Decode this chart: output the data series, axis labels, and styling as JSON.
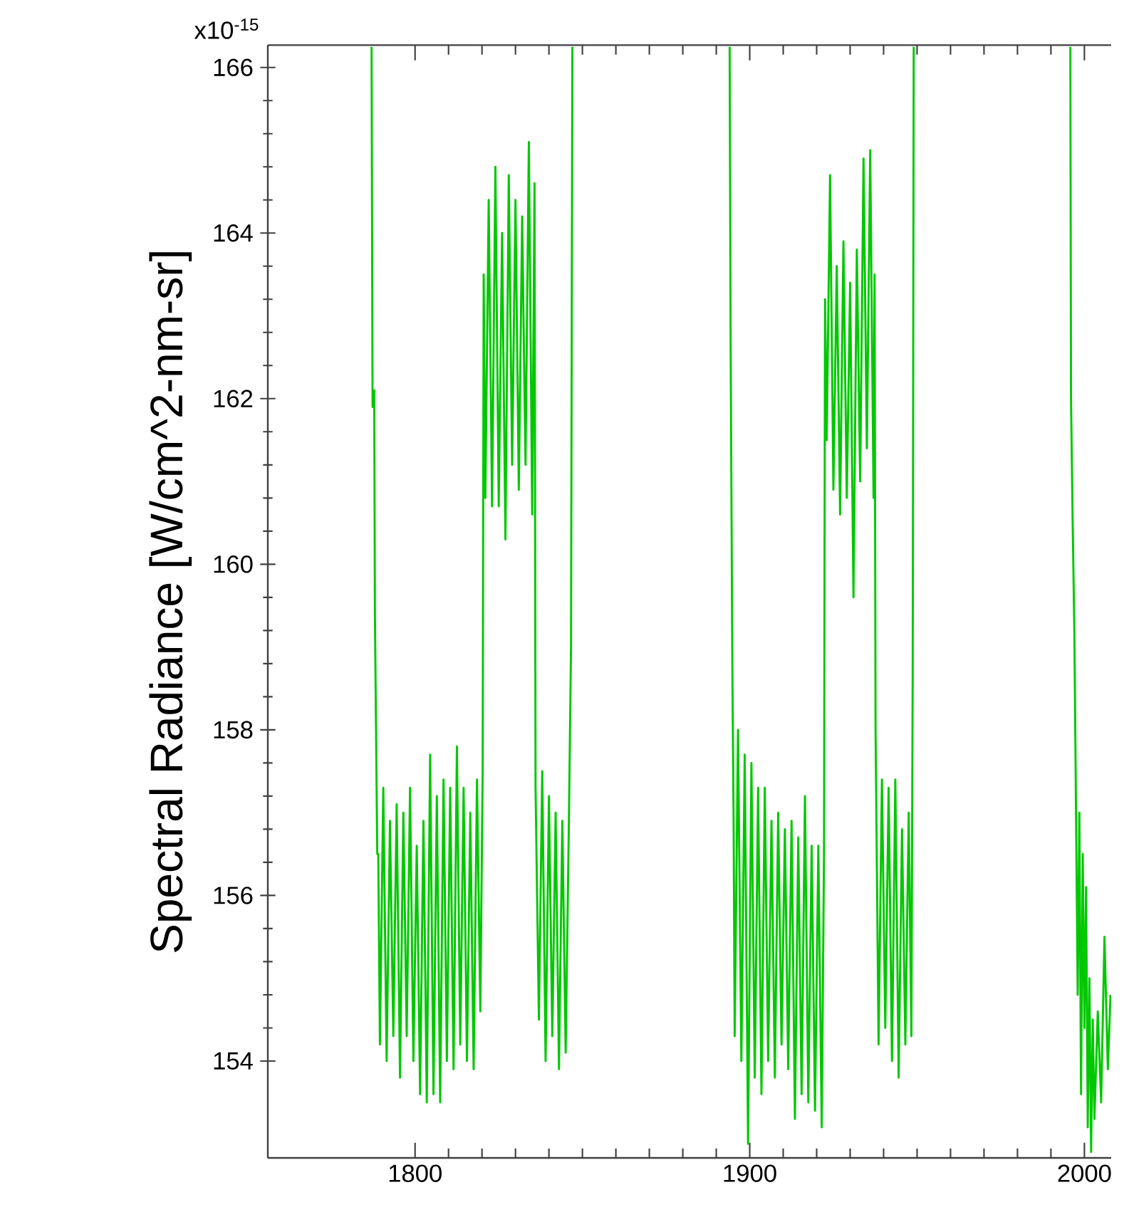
{
  "chart_data": {
    "type": "line",
    "ylabel": "Spectral Radiance [W/cm^2-nm-sr]",
    "color": "#00c800",
    "xlim": [
      1756,
      2008
    ],
    "ylim": [
      152.83,
      166.27
    ],
    "xticks": [
      1800,
      1900,
      2000
    ],
    "yticks": [
      154,
      156,
      158,
      160,
      162,
      164,
      166
    ],
    "annotations": [
      "x10$^{-15}$"
    ],
    "x": [
      1787.0,
      1787.3,
      1787.8,
      1788.0,
      1788.7,
      1789,
      1789.5,
      1790.5,
      1791.5,
      1792.5,
      1793.5,
      1794.5,
      1795.5,
      1796.5,
      1797.5,
      1798.5,
      1799.5,
      1800.5,
      1801.5,
      1802.5,
      1803.5,
      1804.5,
      1805.5,
      1806.5,
      1807.5,
      1808.5,
      1809.5,
      1810.5,
      1811.5,
      1812.5,
      1813.5,
      1814.5,
      1815.5,
      1816.5,
      1817.5,
      1818.5,
      1819.5,
      1820.2,
      1820.5,
      1821,
      1822,
      1823,
      1824,
      1825,
      1826,
      1827,
      1828,
      1829,
      1830,
      1831,
      1832,
      1833,
      1834,
      1835,
      1835.7,
      1836,
      1837,
      1838,
      1839,
      1840,
      1841,
      1842,
      1843,
      1844,
      1845,
      1846,
      1846.6,
      1847,
      1870,
      1894,
      1894.3,
      1894.8,
      1895.2,
      1895.5,
      1896.5,
      1897.5,
      1898.5,
      1899.5,
      1900.5,
      1901.5,
      1902.5,
      1903.5,
      1904.5,
      1905.5,
      1906.5,
      1907.5,
      1908.5,
      1909.5,
      1910.5,
      1911.5,
      1912.5,
      1913.5,
      1914.5,
      1915.5,
      1916.5,
      1917.5,
      1918.5,
      1919.5,
      1920.5,
      1921.5,
      1922.2,
      1922.5,
      1923,
      1924,
      1925,
      1926,
      1927,
      1928,
      1929,
      1930,
      1931,
      1932,
      1933,
      1934,
      1935,
      1936,
      1937,
      1937.3,
      1937.6,
      1938.5,
      1939.5,
      1940.5,
      1941.5,
      1942.5,
      1943.5,
      1944.5,
      1945.5,
      1946.5,
      1947.5,
      1948.3,
      1948.7,
      1949,
      1970,
      1995.8,
      1996,
      1996.5,
      1997,
      1997.5,
      1998,
      1998.5,
      1999,
      1999.5,
      2000,
      2000.5,
      2001,
      2001.5,
      2002,
      2002.5,
      2003,
      2004,
      2005,
      2006,
      2007,
      2007.8
    ],
    "values": [
      166.25,
      161.9,
      162.1,
      159.4,
      156.5,
      156.5,
      154.2,
      157.3,
      154.0,
      156.9,
      154.3,
      157.1,
      153.8,
      157.0,
      154.3,
      157.3,
      154.0,
      156.6,
      153.6,
      156.9,
      153.5,
      157.7,
      153.6,
      157.2,
      153.5,
      157.4,
      154.0,
      157.3,
      153.9,
      157.8,
      154.2,
      157.3,
      154.0,
      157.0,
      153.9,
      157.4,
      154.6,
      157.5,
      163.5,
      160.8,
      164.4,
      160.7,
      164.8,
      160.7,
      164.0,
      160.3,
      164.7,
      161.2,
      164.4,
      160.9,
      164.2,
      161.2,
      165.1,
      160.6,
      164.6,
      157.3,
      154.5,
      157.5,
      154.0,
      157.2,
      154.3,
      157.0,
      153.9,
      156.9,
      154.1,
      157.0,
      159.0,
      166.25,
      null,
      166.25,
      162.6,
      158.8,
      156.8,
      154.3,
      158.0,
      154.0,
      157.7,
      153.0,
      157.6,
      153.8,
      157.3,
      153.6,
      157.3,
      154.0,
      156.9,
      153.8,
      157.0,
      154.2,
      156.8,
      153.9,
      156.9,
      153.3,
      156.7,
      153.6,
      157.2,
      153.5,
      156.6,
      153.4,
      156.6,
      153.2,
      156.5,
      163.2,
      161.5,
      164.7,
      160.9,
      163.6,
      160.6,
      163.9,
      160.8,
      163.4,
      159.6,
      163.8,
      161.0,
      164.9,
      161.4,
      165.0,
      160.8,
      163.5,
      158.0,
      154.2,
      157.4,
      154.4,
      157.3,
      154.0,
      157.4,
      153.8,
      156.8,
      154.2,
      157.0,
      154.3,
      158.7,
      166.25,
      null,
      166.25,
      162.0,
      160.5,
      159.2,
      157.0,
      154.8,
      157.0,
      153.6,
      156.5,
      154.4,
      156.1,
      153.2,
      155.0,
      152.9,
      154.5,
      153.3,
      154.6,
      153.5,
      155.5,
      153.9,
      154.8
    ]
  }
}
